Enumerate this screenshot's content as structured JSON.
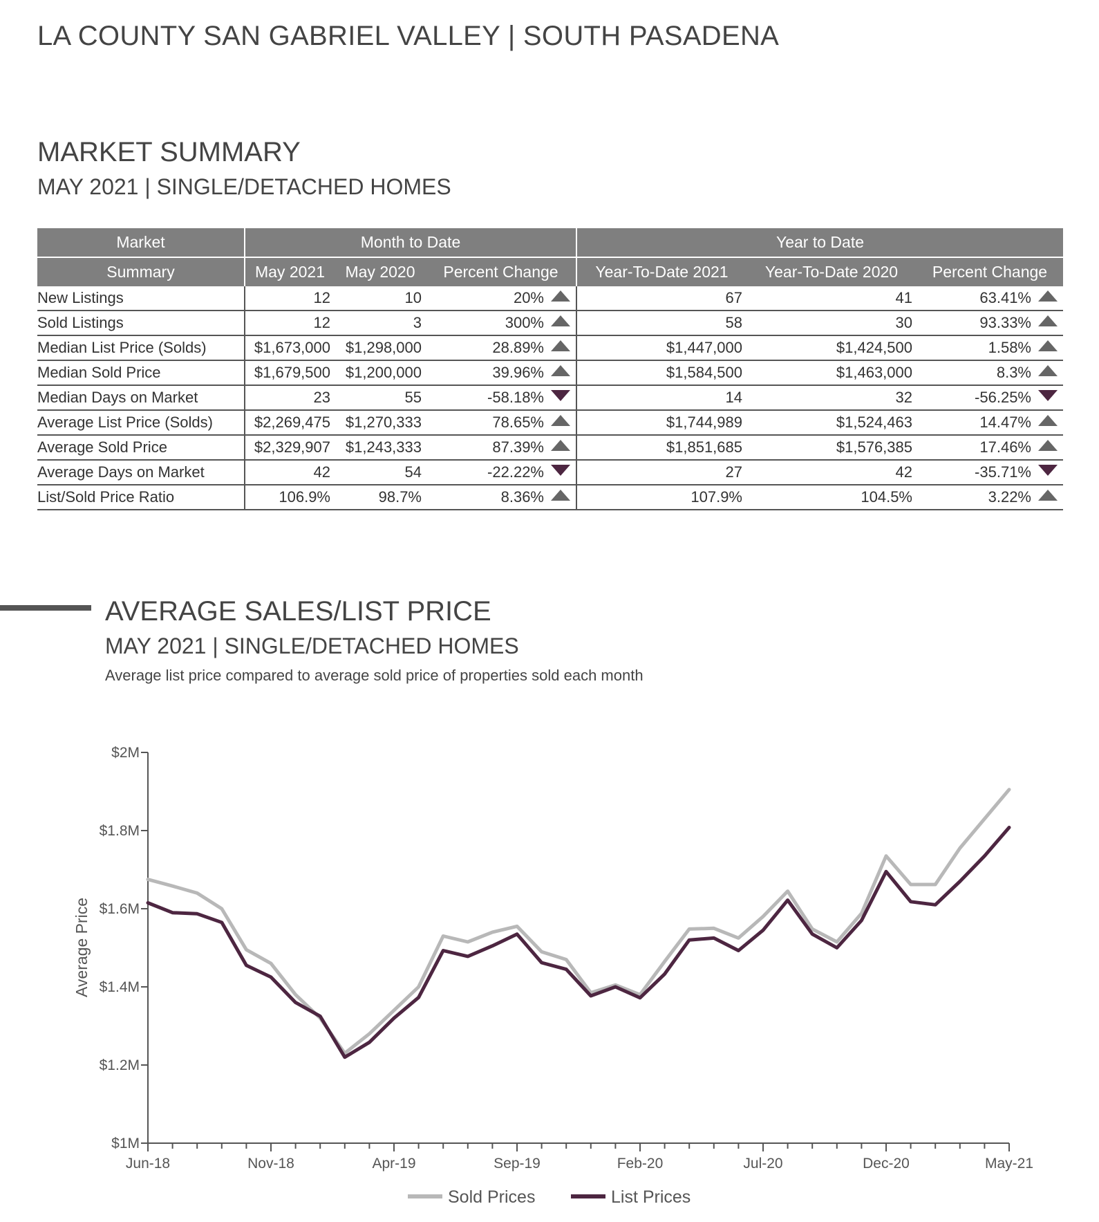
{
  "header": {
    "title": "LA COUNTY SAN GABRIEL VALLEY | SOUTH PASADENA"
  },
  "market_summary": {
    "title": "MARKET SUMMARY",
    "subtitle": "MAY 2021 | SINGLE/DETACHED HOMES",
    "group_headers": {
      "summary_top": "Market",
      "summary_bottom": "Summary",
      "mtd": "Month to Date",
      "ytd": "Year to Date"
    },
    "columns": [
      "May 2021",
      "May 2020",
      "Percent Change",
      "Year-To-Date 2021",
      "Year-To-Date 2020",
      "Percent Change"
    ],
    "rows": [
      {
        "label": "New Listings",
        "may2021": "12",
        "may2020": "10",
        "mtd_pct": "20%",
        "mtd_dir": "up",
        "ytd2021": "67",
        "ytd2020": "41",
        "ytd_pct": "63.41%",
        "ytd_dir": "up"
      },
      {
        "label": "Sold Listings",
        "may2021": "12",
        "may2020": "3",
        "mtd_pct": "300%",
        "mtd_dir": "up",
        "ytd2021": "58",
        "ytd2020": "30",
        "ytd_pct": "93.33%",
        "ytd_dir": "up"
      },
      {
        "label": "Median List Price (Solds)",
        "may2021": "$1,673,000",
        "may2020": "$1,298,000",
        "mtd_pct": "28.89%",
        "mtd_dir": "up",
        "ytd2021": "$1,447,000",
        "ytd2020": "$1,424,500",
        "ytd_pct": "1.58%",
        "ytd_dir": "up"
      },
      {
        "label": "Median Sold Price",
        "may2021": "$1,679,500",
        "may2020": "$1,200,000",
        "mtd_pct": "39.96%",
        "mtd_dir": "up",
        "ytd2021": "$1,584,500",
        "ytd2020": "$1,463,000",
        "ytd_pct": "8.3%",
        "ytd_dir": "up"
      },
      {
        "label": "Median Days on Market",
        "may2021": "23",
        "may2020": "55",
        "mtd_pct": "-58.18%",
        "mtd_dir": "down",
        "ytd2021": "14",
        "ytd2020": "32",
        "ytd_pct": "-56.25%",
        "ytd_dir": "down"
      },
      {
        "label": "Average List Price (Solds)",
        "may2021": "$2,269,475",
        "may2020": "$1,270,333",
        "mtd_pct": "78.65%",
        "mtd_dir": "up",
        "ytd2021": "$1,744,989",
        "ytd2020": "$1,524,463",
        "ytd_pct": "14.47%",
        "ytd_dir": "up"
      },
      {
        "label": "Average Sold Price",
        "may2021": "$2,329,907",
        "may2020": "$1,243,333",
        "mtd_pct": "87.39%",
        "mtd_dir": "up",
        "ytd2021": "$1,851,685",
        "ytd2020": "$1,576,385",
        "ytd_pct": "17.46%",
        "ytd_dir": "up"
      },
      {
        "label": "Average Days on Market",
        "may2021": "42",
        "may2020": "54",
        "mtd_pct": "-22.22%",
        "mtd_dir": "down",
        "ytd2021": "27",
        "ytd2020": "42",
        "ytd_pct": "-35.71%",
        "ytd_dir": "down"
      },
      {
        "label": "List/Sold Price Ratio",
        "may2021": "106.9%",
        "may2020": "98.7%",
        "mtd_pct": "8.36%",
        "mtd_dir": "up",
        "ytd2021": "107.9%",
        "ytd2020": "104.5%",
        "ytd_pct": "3.22%",
        "ytd_dir": "up"
      }
    ],
    "colors": {
      "header_bg": "#7f7f7f",
      "up_arrow": "#666666",
      "down_arrow": "#4d2641"
    }
  },
  "price_chart": {
    "title": "AVERAGE SALES/LIST PRICE",
    "subtitle": "MAY 2021 | SINGLE/DETACHED HOMES",
    "description": "Average list price compared to average sold price of properties sold each month"
  },
  "chart_data": {
    "type": "line",
    "title": "",
    "xlabel": "",
    "ylabel": "Average Price",
    "x": [
      "Jun-18",
      "Jul-18",
      "Aug-18",
      "Sep-18",
      "Oct-18",
      "Nov-18",
      "Dec-18",
      "Jan-19",
      "Feb-19",
      "Mar-19",
      "Apr-19",
      "May-19",
      "Jun-19",
      "Jul-19",
      "Aug-19",
      "Sep-19",
      "Oct-19",
      "Nov-19",
      "Dec-19",
      "Jan-20",
      "Feb-20",
      "Mar-20",
      "Apr-20",
      "May-20",
      "Jun-20",
      "Jul-20",
      "Aug-20",
      "Sep-20",
      "Oct-20",
      "Nov-20",
      "Dec-20",
      "Jan-21",
      "Feb-21",
      "Mar-21",
      "Apr-21",
      "May-21"
    ],
    "tick_labels": [
      "Jun-18",
      "Nov-18",
      "Apr-19",
      "Sep-19",
      "Feb-20",
      "Jul-20",
      "Dec-20",
      "May-21"
    ],
    "y_tick_labels": [
      "$1M",
      "$1.2M",
      "$1.4M",
      "$1.6M",
      "$1.8M",
      "$2M"
    ],
    "ylim": [
      1000000,
      2000000
    ],
    "grid": false,
    "legend_position": "bottom-center",
    "series": [
      {
        "name": "Sold Prices",
        "color": "#b8b8b8",
        "values": [
          1675000,
          1658000,
          1640000,
          1600000,
          1495000,
          1460000,
          1380000,
          1320000,
          1230000,
          1280000,
          1340000,
          1400000,
          1530000,
          1515000,
          1540000,
          1555000,
          1490000,
          1470000,
          1385000,
          1405000,
          1380000,
          1465000,
          1548000,
          1550000,
          1525000,
          1580000,
          1645000,
          1548000,
          1515000,
          1588000,
          1735000,
          1662000,
          1662000,
          1755000,
          1830000,
          1905000
        ]
      },
      {
        "name": "List Prices",
        "color": "#4d2641",
        "values": [
          1615000,
          1590000,
          1587000,
          1565000,
          1455000,
          1425000,
          1360000,
          1325000,
          1220000,
          1258000,
          1320000,
          1373000,
          1493000,
          1478000,
          1505000,
          1535000,
          1462000,
          1445000,
          1377000,
          1400000,
          1372000,
          1433000,
          1520000,
          1525000,
          1493000,
          1545000,
          1622000,
          1535000,
          1500000,
          1570000,
          1695000,
          1618000,
          1610000,
          1670000,
          1735000,
          1808000
        ]
      }
    ]
  }
}
